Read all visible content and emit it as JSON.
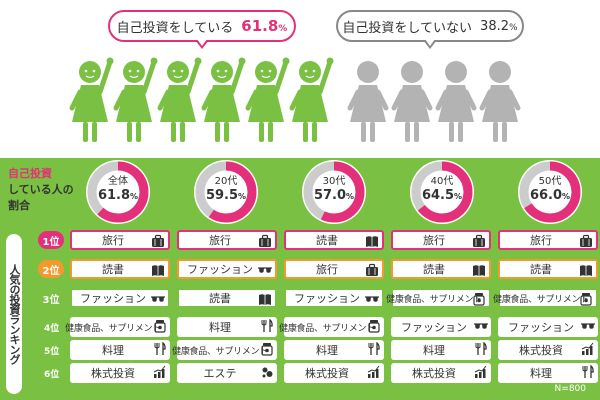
{
  "header": {
    "bubble_yes": {
      "text": "自己投資をしている",
      "value": "61.8",
      "unit": "%"
    },
    "bubble_no": {
      "text": "自己投資をしていない",
      "value": "38.2",
      "unit": "%"
    },
    "figures": {
      "total": 10,
      "highlighted": 6,
      "highlight_color": "#7ac143",
      "rest_color": "#b3b3b3"
    }
  },
  "share": {
    "label_highlight": "自己投資",
    "label_rest1": "している人の",
    "label_rest2": "割合",
    "accent_color": "#e4307a",
    "track_color": "#cccccc"
  },
  "ranking": {
    "title": "人気の投資ランキング",
    "ranks": [
      "1位",
      "2位",
      "3位",
      "4位",
      "5位",
      "6位"
    ],
    "badge_colors": [
      "#e4307a",
      "#f39a2e",
      "#7ac143"
    ],
    "icon_names": {
      "旅行": "suitcase-icon",
      "読書": "book-icon",
      "ファッション": "sunglasses-icon",
      "健康食品、サプリメント": "supplement-icon",
      "料理": "cutlery-icon",
      "株式投資": "stock-chart-icon",
      "エステ": "beauty-icon"
    }
  },
  "footer": {
    "sample_size": "N=800"
  },
  "chart_data": [
    {
      "type": "pie",
      "title": "",
      "categories": [
        "自己投資をしている",
        "自己投資をしていない"
      ],
      "values": [
        61.8,
        38.2
      ],
      "unit": "%"
    },
    {
      "type": "pie",
      "title": "自己投資している人の割合",
      "series": [
        {
          "name": "全体",
          "value": 61.8
        },
        {
          "name": "20代",
          "value": 59.5
        },
        {
          "name": "30代",
          "value": 57.0
        },
        {
          "name": "40代",
          "value": 64.5
        },
        {
          "name": "50代",
          "value": 66.0
        }
      ],
      "unit": "%"
    },
    {
      "type": "table",
      "title": "人気の投資ランキング",
      "columns": [
        "全体",
        "20代",
        "30代",
        "40代",
        "50代"
      ],
      "rows": [
        {
          "rank": "1位",
          "values": [
            "旅行",
            "旅行",
            "読書",
            "旅行",
            "旅行"
          ]
        },
        {
          "rank": "2位",
          "values": [
            "読書",
            "ファッション",
            "旅行",
            "読書",
            "読書"
          ]
        },
        {
          "rank": "3位",
          "values": [
            "ファッション",
            "読書",
            "ファッション",
            "健康食品、サプリメント",
            "健康食品、サプリメント"
          ]
        },
        {
          "rank": "4位",
          "values": [
            "健康食品、サプリメント",
            "料理",
            "健康食品、サプリメント",
            "ファッション",
            "ファッション"
          ]
        },
        {
          "rank": "5位",
          "values": [
            "料理",
            "健康食品、サプリメント",
            "料理",
            "料理",
            "株式投資"
          ]
        },
        {
          "rank": "6位",
          "values": [
            "株式投資",
            "エステ",
            "株式投資",
            "株式投資",
            "料理"
          ]
        }
      ]
    }
  ]
}
